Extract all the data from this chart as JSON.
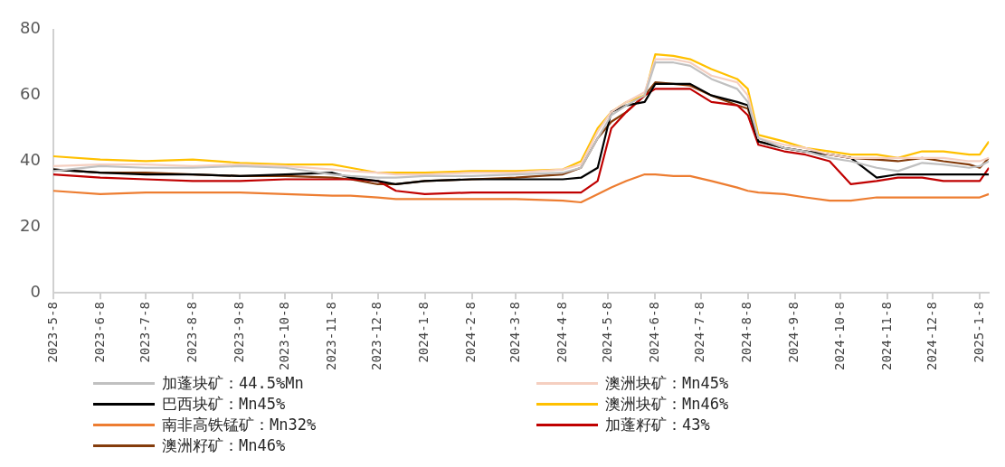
{
  "chart_data": {
    "type": "line",
    "x": [
      "2023-05-08",
      "2023-06-08",
      "2023-07-08",
      "2023-08-08",
      "2023-09-08",
      "2023-10-08",
      "2023-11-08",
      "2023-11-20",
      "2023-12-08",
      "2023-12-20",
      "2024-01-08",
      "2024-02-08",
      "2024-03-08",
      "2024-04-08",
      "2024-04-20",
      "2024-05-01",
      "2024-05-10",
      "2024-05-20",
      "2024-06-01",
      "2024-06-08",
      "2024-06-20",
      "2024-07-01",
      "2024-07-15",
      "2024-08-01",
      "2024-08-08",
      "2024-08-15",
      "2024-09-01",
      "2024-09-15",
      "2024-10-01",
      "2024-10-15",
      "2024-11-01",
      "2024-11-15",
      "2024-12-01",
      "2024-12-15",
      "2025-01-01",
      "2025-01-08",
      "2025-01-14"
    ],
    "series": [
      {
        "name": "加蓬块矿：44.5%Mn",
        "color": "#c0c0c0",
        "values": [
          37,
          38.5,
          38,
          38,
          38.5,
          38,
          36,
          35.5,
          35,
          35,
          35.5,
          35.5,
          36,
          36.5,
          38,
          47,
          54,
          57,
          60,
          70,
          70,
          69,
          65,
          62,
          58,
          47,
          44,
          43,
          41,
          40,
          38,
          37,
          39.5,
          39,
          38,
          38.5,
          40
        ]
      },
      {
        "name": "澳洲块矿：Mn45%",
        "color": "#f5cfc0",
        "values": [
          38.5,
          39,
          39,
          38.5,
          39,
          38.5,
          37.5,
          37,
          36.5,
          36,
          36,
          36.5,
          36.5,
          37.5,
          39,
          49,
          55,
          58,
          61,
          71,
          71,
          70,
          66,
          64,
          60,
          47,
          45,
          44,
          42,
          41,
          41,
          41,
          41,
          41,
          40,
          40,
          41
        ]
      },
      {
        "name": "巴西块矿：Mn45%",
        "color": "#000000",
        "values": [
          37.5,
          36.5,
          36,
          36,
          35.5,
          36,
          36.5,
          35,
          34,
          33,
          34,
          34.5,
          34.5,
          34.5,
          35,
          38,
          55,
          57,
          58,
          63.5,
          63.5,
          63.5,
          60,
          58,
          57,
          46,
          44,
          43,
          42,
          41,
          35,
          36,
          36,
          36,
          36,
          36,
          36
        ]
      },
      {
        "name": "澳洲块矿：Mn46%",
        "color": "#ffc000",
        "values": [
          41.5,
          40.5,
          40,
          40.5,
          39.5,
          39,
          39,
          38,
          36.5,
          36.5,
          36.5,
          37,
          37,
          37.5,
          40,
          50,
          55,
          58,
          60,
          72.5,
          72,
          71,
          68,
          65,
          62,
          48,
          46,
          44,
          43,
          42,
          42,
          41,
          43,
          43,
          42,
          42,
          46
        ]
      },
      {
        "name": "南非高铁锰矿：Mn32%",
        "color": "#ed7d31",
        "values": [
          31,
          30,
          30.5,
          30.5,
          30.5,
          30,
          29.5,
          29.5,
          29,
          28.5,
          28.5,
          28.5,
          28.5,
          28,
          27.5,
          30,
          32,
          34,
          36,
          36,
          35.5,
          35.5,
          34,
          32,
          31,
          30.5,
          30,
          29,
          28,
          28,
          29,
          29,
          29,
          29,
          29,
          29,
          30
        ]
      },
      {
        "name": "加蓬籽矿：43%",
        "color": "#c00000",
        "values": [
          36,
          35,
          34.5,
          34,
          34,
          34.5,
          34.5,
          34.5,
          34,
          31,
          30,
          30.5,
          30.5,
          30.5,
          30.5,
          34,
          50,
          55,
          60,
          62,
          62,
          62,
          58,
          57,
          54,
          45,
          43,
          42,
          40,
          33,
          34,
          35,
          35,
          34,
          34,
          34,
          38
        ]
      },
      {
        "name": "澳洲籽矿：Mn46%",
        "color": "#843c0c",
        "values": [
          37.5,
          36.5,
          36.5,
          36,
          35.5,
          35.5,
          35,
          34.5,
          33,
          33,
          34,
          34.5,
          35,
          36,
          38,
          47,
          52,
          55,
          60,
          64,
          63.5,
          63,
          60,
          57,
          56,
          46,
          44,
          43,
          42,
          41,
          40.5,
          40,
          41,
          40,
          39,
          38,
          41
        ]
      }
    ],
    "ylim": [
      0,
      80
    ],
    "yticks": [
      0,
      20,
      40,
      60,
      80
    ],
    "xlim": [
      "2023-05-08",
      "2025-01-14"
    ],
    "xticks": [
      {
        "value": "2023-05-08",
        "label": "2023-5-8"
      },
      {
        "value": "2023-06-08",
        "label": "2023-6-8"
      },
      {
        "value": "2023-07-08",
        "label": "2023-7-8"
      },
      {
        "value": "2023-08-08",
        "label": "2023-8-8"
      },
      {
        "value": "2023-09-08",
        "label": "2023-9-8"
      },
      {
        "value": "2023-10-08",
        "label": "2023-10-8"
      },
      {
        "value": "2023-11-08",
        "label": "2023-11-8"
      },
      {
        "value": "2023-12-08",
        "label": "2023-12-8"
      },
      {
        "value": "2024-01-08",
        "label": "2024-1-8"
      },
      {
        "value": "2024-02-08",
        "label": "2024-2-8"
      },
      {
        "value": "2024-03-08",
        "label": "2024-3-8"
      },
      {
        "value": "2024-04-08",
        "label": "2024-4-8"
      },
      {
        "value": "2024-05-08",
        "label": "2024-5-8"
      },
      {
        "value": "2024-06-08",
        "label": "2024-6-8"
      },
      {
        "value": "2024-07-08",
        "label": "2024-7-8"
      },
      {
        "value": "2024-08-08",
        "label": "2024-8-8"
      },
      {
        "value": "2024-09-08",
        "label": "2024-9-8"
      },
      {
        "value": "2024-10-08",
        "label": "2024-10-8"
      },
      {
        "value": "2024-11-08",
        "label": "2024-11-8"
      },
      {
        "value": "2024-12-08",
        "label": "2024-12-8"
      },
      {
        "value": "2025-01-08",
        "label": "2025-1-8"
      }
    ],
    "grid": false,
    "legend": "bottom",
    "marker": "none",
    "line_style": "solid"
  }
}
